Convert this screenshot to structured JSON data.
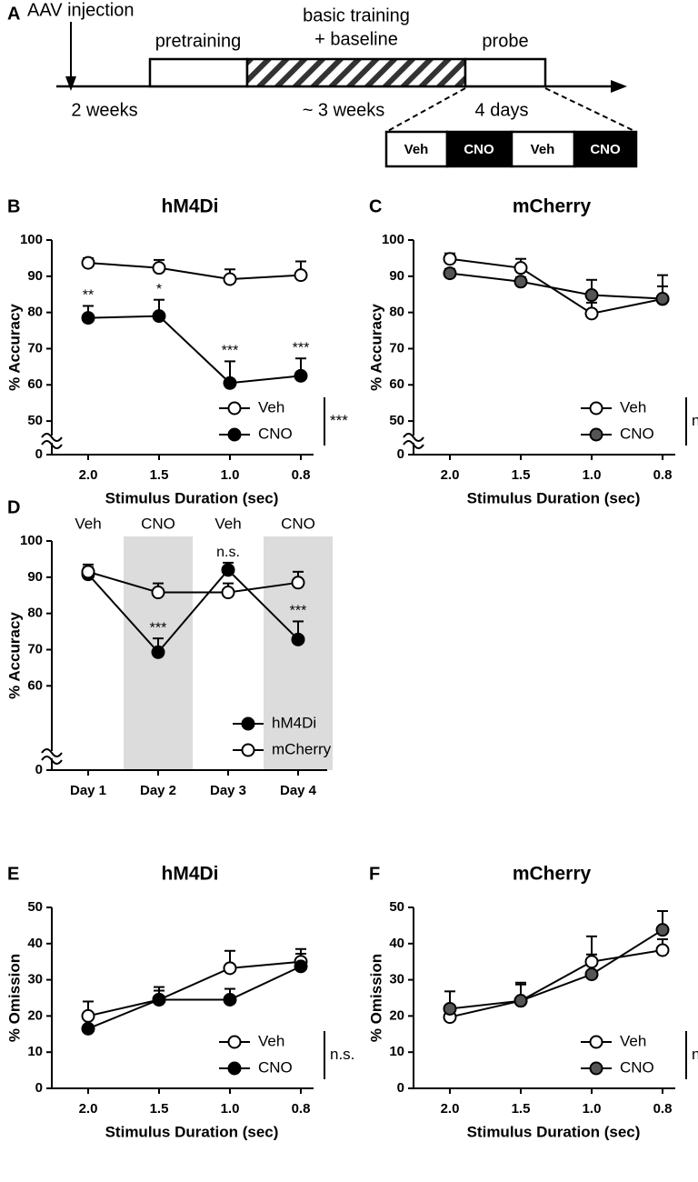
{
  "timeline": {
    "panel": "A",
    "event": "AAV injection",
    "phases": [
      "pretraining",
      "basic training",
      "+ baseline",
      "probe"
    ],
    "durations": [
      "2 weeks",
      "~ 3 weeks",
      "4 days"
    ],
    "sessions": [
      "Veh",
      "CNO",
      "Veh",
      "CNO"
    ]
  },
  "chart_data": [
    {
      "panel": "B",
      "type": "line",
      "title": "hM4Di",
      "xlabel": "Stimulus Duration (sec)",
      "ylabel": "% Accuracy",
      "categories": [
        "2.0",
        "1.5",
        "1.0",
        "0.8"
      ],
      "ylim": [
        0,
        100
      ],
      "ybreak": 45,
      "yticks": [
        0,
        50,
        60,
        70,
        80,
        90,
        100
      ],
      "legend": "lower right",
      "legend_stat": "***",
      "series": [
        {
          "name": "Veh",
          "color": "#ffffff",
          "values": [
            93.7,
            92.3,
            89.2,
            90.3
          ],
          "errors": [
            1.3,
            2.2,
            2.7,
            3.8
          ]
        },
        {
          "name": "CNO",
          "color": "#000000",
          "values": [
            78.5,
            79,
            60.5,
            62.5
          ],
          "errors": [
            3.3,
            4.5,
            6,
            4.8
          ],
          "annotations": [
            "**",
            "*",
            "***",
            "***"
          ]
        }
      ]
    },
    {
      "panel": "C",
      "type": "line",
      "title": "mCherry",
      "xlabel": "Stimulus Duration (sec)",
      "ylabel": "% Accuracy",
      "categories": [
        "2.0",
        "1.5",
        "1.0",
        "0.8"
      ],
      "ylim": [
        0,
        100
      ],
      "ybreak": 45,
      "yticks": [
        0,
        50,
        60,
        70,
        80,
        90,
        100
      ],
      "legend": "lower right",
      "legend_stat": "n.s.",
      "series": [
        {
          "name": "Veh",
          "color": "#ffffff",
          "values": [
            94.8,
            92.3,
            79.7,
            83.7
          ],
          "errors": [
            1.5,
            2.5,
            3,
            3.5
          ]
        },
        {
          "name": "CNO",
          "color": "#555555",
          "values": [
            90.8,
            88.5,
            84.8,
            83.8
          ],
          "errors": [
            1.2,
            1.2,
            4.2,
            6.5
          ]
        }
      ]
    },
    {
      "panel": "D",
      "type": "line",
      "ylabel": "% Accuracy",
      "categories": [
        "Day 1",
        "Day 2",
        "Day 3",
        "Day 4"
      ],
      "top_labels": [
        "Veh",
        "CNO",
        "Veh",
        "CNO"
      ],
      "highlight": [
        false,
        true,
        false,
        true
      ],
      "highlight_color": "#dcdcdc",
      "ylim": [
        0,
        100
      ],
      "ybreak": 41,
      "yticks": [
        0,
        60,
        70,
        80,
        90,
        100
      ],
      "legend": "lower right",
      "series": [
        {
          "name": "hM4Di",
          "color": "#000000",
          "values": [
            90.8,
            69.3,
            92,
            72.8
          ],
          "errors": [
            2,
            3.8,
            2,
            5
          ],
          "annotations": [
            null,
            "***",
            "n.s.",
            "***"
          ]
        },
        {
          "name": "mCherry",
          "color": "#ffffff",
          "values": [
            91.5,
            85.8,
            85.8,
            88.5
          ],
          "errors": [
            2,
            2.5,
            2.5,
            3
          ]
        }
      ]
    },
    {
      "panel": "E",
      "type": "line",
      "title": "hM4Di",
      "xlabel": "Stimulus Duration (sec)",
      "ylabel": "% Omission",
      "categories": [
        "2.0",
        "1.5",
        "1.0",
        "0.8"
      ],
      "ylim": [
        0,
        50
      ],
      "yticks": [
        0,
        10,
        20,
        30,
        40,
        50
      ],
      "legend": "lower right",
      "legend_stat": "n.s.",
      "series": [
        {
          "name": "Veh",
          "color": "#ffffff",
          "values": [
            20,
            24.5,
            33.2,
            35
          ],
          "errors": [
            4,
            3.5,
            4.8,
            3.5
          ]
        },
        {
          "name": "CNO",
          "color": "#000000",
          "values": [
            16.5,
            24.5,
            24.5,
            33.7
          ],
          "errors": [
            0,
            2.5,
            3,
            3.5
          ]
        }
      ]
    },
    {
      "panel": "F",
      "type": "line",
      "title": "mCherry",
      "xlabel": "Stimulus Duration (sec)",
      "ylabel": "% Omission",
      "categories": [
        "2.0",
        "1.5",
        "1.0",
        "0.8"
      ],
      "ylim": [
        0,
        50
      ],
      "yticks": [
        0,
        10,
        20,
        30,
        40,
        50
      ],
      "legend": "lower right",
      "legend_stat": "n.s.",
      "series": [
        {
          "name": "Veh",
          "color": "#ffffff",
          "values": [
            19.7,
            24.2,
            35,
            38.2
          ],
          "errors": [
            0,
            5,
            7,
            3
          ]
        },
        {
          "name": "CNO",
          "color": "#555555",
          "values": [
            22,
            24.2,
            31.5,
            43.8
          ],
          "errors": [
            4.8,
            4.5,
            5.5,
            5.2
          ]
        }
      ]
    }
  ]
}
